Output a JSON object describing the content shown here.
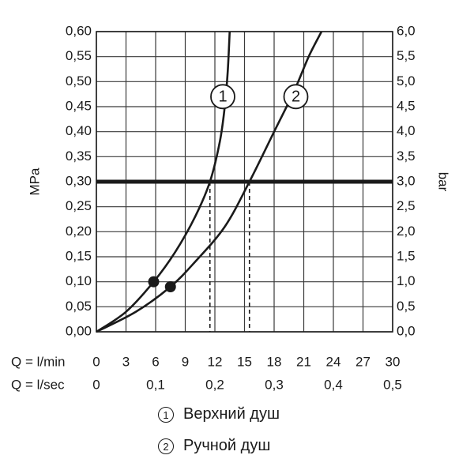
{
  "chart_data": {
    "type": "line",
    "ylabel_left": "MPa",
    "ylabel_right": "bar",
    "y_left_ticks": [
      "0,00",
      "0,05",
      "0,10",
      "0,15",
      "0,20",
      "0,25",
      "0,30",
      "0,35",
      "0,40",
      "0,45",
      "0,50",
      "0,55",
      "0,60"
    ],
    "y_right_ticks": [
      "0,0",
      "0,5",
      "1,0",
      "1,5",
      "2,0",
      "2,5",
      "3,0",
      "3,5",
      "4,0",
      "4,5",
      "5,0",
      "5,5",
      "6,0"
    ],
    "x_row1_label": "Q = l/min",
    "x_row1_ticks": [
      "0",
      "3",
      "6",
      "9",
      "12",
      "15",
      "18",
      "21",
      "24",
      "27",
      "30"
    ],
    "x_row2_label": "Q = l/sec",
    "x_row2_ticks": [
      "0",
      "0,1",
      "0,2",
      "0,3",
      "0,4",
      "0,5"
    ],
    "xlim": [
      0,
      30
    ],
    "ylim": [
      0,
      0.6
    ],
    "grid": true,
    "reference_line": {
      "y": 0.3
    },
    "series": [
      {
        "name": "1",
        "x": [
          0,
          3,
          5.8,
          8,
          10,
          11.5,
          12.5,
          13,
          13.3,
          13.5
        ],
        "y": [
          0,
          0.04,
          0.1,
          0.16,
          0.23,
          0.3,
          0.38,
          0.45,
          0.52,
          0.6
        ],
        "marker": {
          "x": 5.8,
          "y": 0.1
        },
        "drop_x": 11.5,
        "label_at": {
          "x": 12.8,
          "y": 0.47
        }
      },
      {
        "name": "2",
        "x": [
          0,
          4,
          7.5,
          10,
          13,
          15.5,
          18,
          20,
          21.5,
          22.8
        ],
        "y": [
          0,
          0.04,
          0.09,
          0.14,
          0.21,
          0.3,
          0.4,
          0.48,
          0.55,
          0.6
        ],
        "marker": {
          "x": 7.5,
          "y": 0.09
        },
        "drop_x": 15.5,
        "label_at": {
          "x": 20.2,
          "y": 0.47
        }
      }
    ]
  },
  "legend": [
    {
      "number": "1",
      "label": "Верхний душ"
    },
    {
      "number": "2",
      "label": "Ручной душ"
    }
  ]
}
